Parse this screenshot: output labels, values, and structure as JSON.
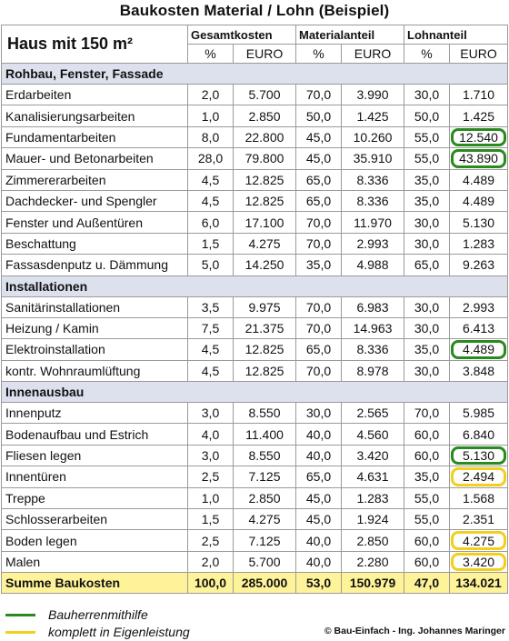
{
  "title": "Baukosten Material / Lohn (Beispiel)",
  "header": {
    "house": "Haus mit 150 m²",
    "groups": [
      "Gesamtkosten",
      "Materialanteil",
      "Lohnanteil"
    ],
    "units": [
      "%",
      "EURO",
      "%",
      "EURO",
      "%",
      "EURO"
    ]
  },
  "highlight_colors": {
    "green": "#2a8a1f",
    "yellow": "#f2cf1c"
  },
  "sections": [
    {
      "title": "Rohbau, Fenster, Fassade",
      "rows": [
        {
          "name": "Erdarbeiten",
          "values": [
            "2,0",
            "5.700",
            "70,0",
            "3.990",
            "30,0",
            "1.710"
          ],
          "mark": ""
        },
        {
          "name": "Kanalisierungsarbeiten",
          "values": [
            "1,0",
            "2.850",
            "50,0",
            "1.425",
            "50,0",
            "1.425"
          ],
          "mark": ""
        },
        {
          "name": "Fundamentarbeiten",
          "values": [
            "8,0",
            "22.800",
            "45,0",
            "10.260",
            "55,0",
            "12.540"
          ],
          "mark": "green"
        },
        {
          "name": "Mauer- und Betonarbeiten",
          "values": [
            "28,0",
            "79.800",
            "45,0",
            "35.910",
            "55,0",
            "43.890"
          ],
          "mark": "green"
        },
        {
          "name": "Zimmererarbeiten",
          "values": [
            "4,5",
            "12.825",
            "65,0",
            "8.336",
            "35,0",
            "4.489"
          ],
          "mark": ""
        },
        {
          "name": "Dachdecker- und Spengler",
          "values": [
            "4,5",
            "12.825",
            "65,0",
            "8.336",
            "35,0",
            "4.489"
          ],
          "mark": ""
        },
        {
          "name": "Fenster und Außentüren",
          "values": [
            "6,0",
            "17.100",
            "70,0",
            "11.970",
            "30,0",
            "5.130"
          ],
          "mark": ""
        },
        {
          "name": "Beschattung",
          "values": [
            "1,5",
            "4.275",
            "70,0",
            "2.993",
            "30,0",
            "1.283"
          ],
          "mark": ""
        },
        {
          "name": "Fassasdenputz u. Dämmung",
          "values": [
            "5,0",
            "14.250",
            "35,0",
            "4.988",
            "65,0",
            "9.263"
          ],
          "mark": ""
        }
      ]
    },
    {
      "title": "Installationen",
      "rows": [
        {
          "name": "Sanitärinstallationen",
          "values": [
            "3,5",
            "9.975",
            "70,0",
            "6.983",
            "30,0",
            "2.993"
          ],
          "mark": ""
        },
        {
          "name": "Heizung / Kamin",
          "values": [
            "7,5",
            "21.375",
            "70,0",
            "14.963",
            "30,0",
            "6.413"
          ],
          "mark": ""
        },
        {
          "name": "Elektroinstallation",
          "values": [
            "4,5",
            "12.825",
            "65,0",
            "8.336",
            "35,0",
            "4.489"
          ],
          "mark": "green"
        },
        {
          "name": "kontr. Wohnraumlüftung",
          "values": [
            "4,5",
            "12.825",
            "70,0",
            "8.978",
            "30,0",
            "3.848"
          ],
          "mark": ""
        }
      ]
    },
    {
      "title": "Innenausbau",
      "rows": [
        {
          "name": "Innenputz",
          "values": [
            "3,0",
            "8.550",
            "30,0",
            "2.565",
            "70,0",
            "5.985"
          ],
          "mark": ""
        },
        {
          "name": "Bodenaufbau und Estrich",
          "values": [
            "4,0",
            "11.400",
            "40,0",
            "4.560",
            "60,0",
            "6.840"
          ],
          "mark": ""
        },
        {
          "name": "Fliesen legen",
          "values": [
            "3,0",
            "8.550",
            "40,0",
            "3.420",
            "60,0",
            "5.130"
          ],
          "mark": "green"
        },
        {
          "name": "Innentüren",
          "values": [
            "2,5",
            "7.125",
            "65,0",
            "4.631",
            "35,0",
            "2.494"
          ],
          "mark": "yellow"
        },
        {
          "name": "Treppe",
          "values": [
            "1,0",
            "2.850",
            "45,0",
            "1.283",
            "55,0",
            "1.568"
          ],
          "mark": ""
        },
        {
          "name": "Schlosserarbeiten",
          "values": [
            "1,5",
            "4.275",
            "45,0",
            "1.924",
            "55,0",
            "2.351"
          ],
          "mark": ""
        },
        {
          "name": "Boden legen",
          "values": [
            "2,5",
            "7.125",
            "40,0",
            "2.850",
            "60,0",
            "4.275"
          ],
          "mark": "yellow"
        },
        {
          "name": "Malen",
          "values": [
            "2,0",
            "5.700",
            "40,0",
            "2.280",
            "60,0",
            "3.420"
          ],
          "mark": "yellow"
        }
      ]
    }
  ],
  "total": {
    "name": "Summe Baukosten",
    "values": [
      "100,0",
      "285.000",
      "53,0",
      "150.979",
      "47,0",
      "134.021"
    ]
  },
  "legend": [
    {
      "color": "#2a8a1f",
      "label": "Bauherrenmithilfe"
    },
    {
      "color": "#f2cf1c",
      "label": "komplett in Eigenleistung"
    }
  ],
  "credit": "© Bau-Einfach - Ing. Johannes Maringer"
}
